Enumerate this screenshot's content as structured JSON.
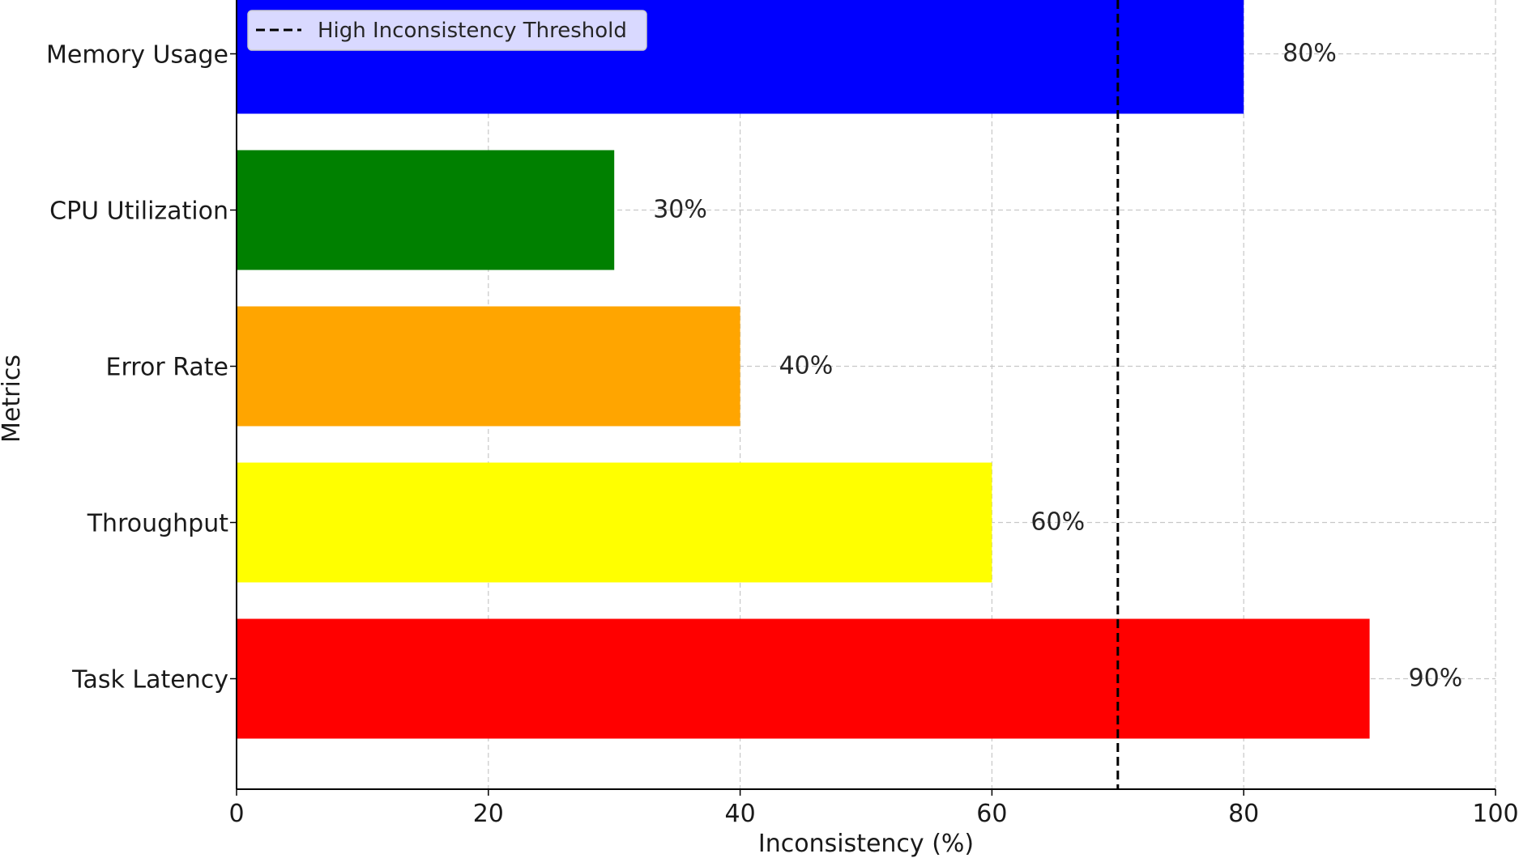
{
  "chart_data": {
    "type": "bar",
    "orientation": "horizontal",
    "categories": [
      "Task Latency",
      "Throughput",
      "Error Rate",
      "CPU Utilization",
      "Memory Usage"
    ],
    "values": [
      90,
      60,
      40,
      30,
      80
    ],
    "value_labels": [
      "90%",
      "60%",
      "40%",
      "30%",
      "80%"
    ],
    "colors": [
      "#ff0000",
      "#ffff00",
      "#ffa500",
      "#008000",
      "#0000ff"
    ],
    "xlabel": "Inconsistency (%)",
    "ylabel": "Metrics",
    "xlim": [
      0,
      100
    ],
    "xticks": [
      0,
      20,
      40,
      60,
      80,
      100
    ],
    "xtick_labels": [
      "0",
      "20",
      "40",
      "60",
      "80",
      "100"
    ],
    "grid": true,
    "threshold": {
      "value": 70,
      "label": "High Inconsistency Threshold",
      "color": "#000000",
      "style": "dashed"
    },
    "legend_position": "top-left"
  }
}
